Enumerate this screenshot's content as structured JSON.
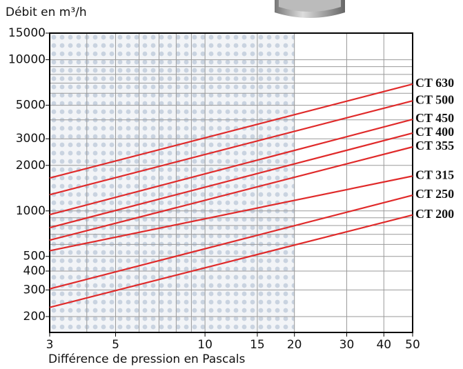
{
  "chart_data": {
    "type": "line",
    "y_title": "Débit en m³/h",
    "x_title": "Différence de pression en Pascals",
    "log_x": true,
    "log_y": true,
    "xlim": [
      3,
      50
    ],
    "ylim": [
      157,
      15000
    ],
    "xticks": [
      3,
      5,
      10,
      15,
      20,
      30,
      40,
      50
    ],
    "yticks": [
      200,
      300,
      400,
      500,
      1000,
      2000,
      3000,
      5000,
      10000,
      15000
    ],
    "xgrid": [
      3,
      4,
      5,
      6,
      7,
      8,
      9,
      10,
      15,
      20,
      30,
      40,
      50
    ],
    "ygrid": [
      200,
      300,
      400,
      500,
      600,
      700,
      800,
      900,
      1000,
      2000,
      3000,
      4000,
      5000,
      6000,
      7000,
      8000,
      9000,
      10000,
      15000
    ],
    "shaded_xlim": [
      3,
      20
    ],
    "x": [
      3,
      50
    ],
    "series": [
      {
        "name": "CT 630",
        "color": "#e02a2a",
        "values": [
          1650,
          6900
        ]
      },
      {
        "name": "CT 500",
        "color": "#e02a2a",
        "values": [
          1280,
          5350
        ]
      },
      {
        "name": "CT 450",
        "color": "#e02a2a",
        "values": [
          945,
          4030
        ]
      },
      {
        "name": "CT 400",
        "color": "#e02a2a",
        "values": [
          775,
          3270
        ]
      },
      {
        "name": "CT 355",
        "color": "#e02a2a",
        "values": [
          640,
          2650
        ]
      },
      {
        "name": "CT 315",
        "color": "#e02a2a",
        "values": [
          545,
          1700
        ]
      },
      {
        "name": "CT 250",
        "color": "#e02a2a",
        "values": [
          305,
          1270
        ]
      },
      {
        "name": "CT 200",
        "color": "#e02a2a",
        "values": [
          230,
          940
        ]
      }
    ]
  }
}
